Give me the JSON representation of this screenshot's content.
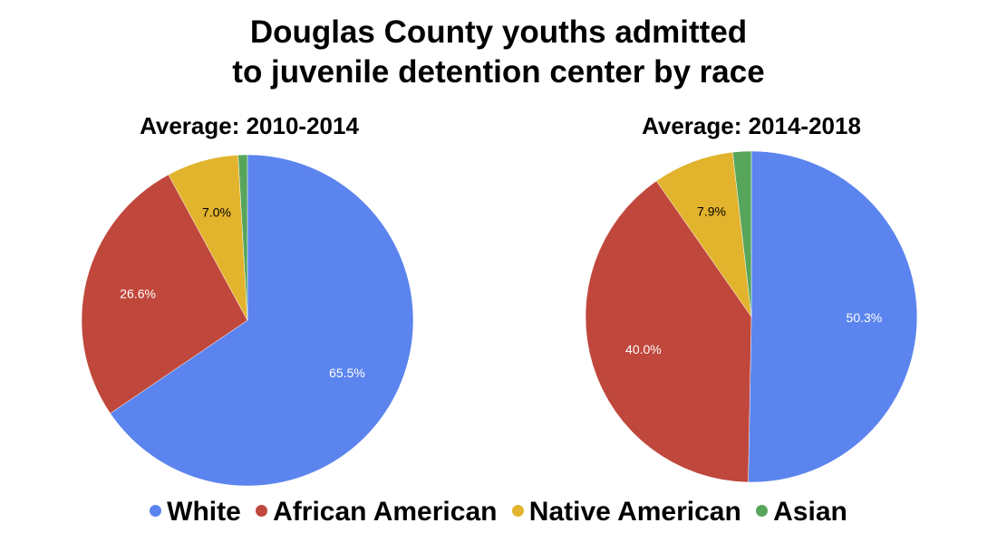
{
  "chart_data": [
    {
      "type": "pie",
      "title": "Douglas County youths admitted to juvenile detention center by race",
      "subtitle": "Average: 2010-2014",
      "categories": [
        "White",
        "African American",
        "Native American",
        "Asian"
      ],
      "values": [
        65.5,
        26.6,
        7.0,
        0.9
      ],
      "labels": [
        "65.5%",
        "26.6%",
        "7.0%",
        ""
      ],
      "colors": [
        "#5b84ee",
        "#c0473c",
        "#e2b32c",
        "#57a55b"
      ]
    },
    {
      "type": "pie",
      "title": "Douglas County youths admitted to juvenile detention center by race",
      "subtitle": "Average: 2014-2018",
      "categories": [
        "White",
        "African American",
        "Native American",
        "Asian"
      ],
      "values": [
        50.3,
        40.0,
        7.9,
        1.8
      ],
      "labels": [
        "50.3%",
        "40.0%",
        "7.9%",
        ""
      ],
      "colors": [
        "#5b84ee",
        "#c0473c",
        "#e2b32c",
        "#57a55b"
      ]
    }
  ],
  "title_lines": [
    "Douglas County youths admitted",
    "to juvenile detention center by race"
  ],
  "legend": [
    {
      "label": "White",
      "color": "#5b84ee"
    },
    {
      "label": "African American",
      "color": "#c0473c"
    },
    {
      "label": "Native American",
      "color": "#e2b32c"
    },
    {
      "label": "Asian",
      "color": "#57a55b"
    }
  ]
}
